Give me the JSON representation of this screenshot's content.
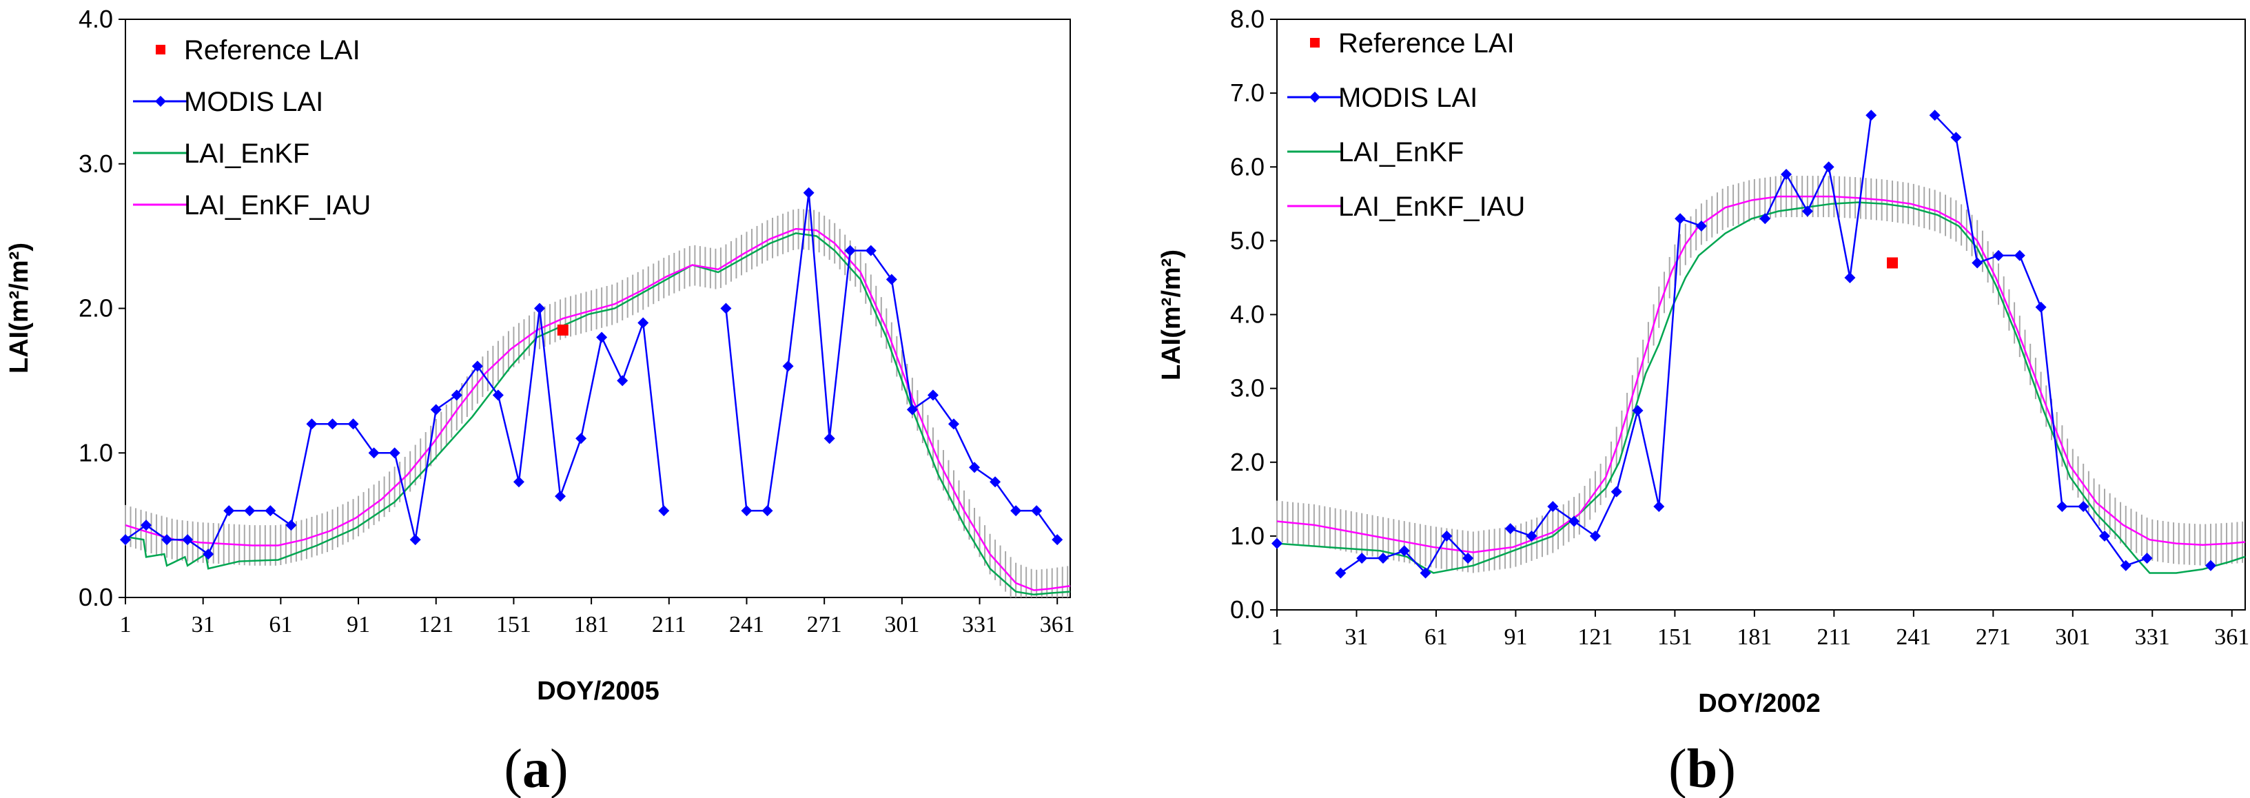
{
  "chart_data": [
    {
      "type": "line",
      "panel_label": {
        "open": "(",
        "letter": "a",
        "close": ")"
      },
      "xlabel": "DOY/2005",
      "ylabel": "LAI(m²/m²)",
      "xlim": [
        1,
        366
      ],
      "ylim": [
        0,
        4
      ],
      "xticks": [
        1,
        31,
        61,
        91,
        121,
        151,
        181,
        211,
        241,
        271,
        301,
        331,
        361
      ],
      "yticks": [
        "0.0",
        "1.0",
        "2.0",
        "3.0",
        "4.0"
      ],
      "legend": [
        "Reference LAI",
        "MODIS LAI",
        "LAI_EnKF",
        "LAI_EnKF_IAU"
      ],
      "series": [
        {
          "name": "Reference LAI",
          "kind": "marker",
          "color": "#ff0000",
          "points": [
            [
              170,
              1.85
            ]
          ]
        },
        {
          "name": "MODIS LAI",
          "kind": "line-marker",
          "color": "#0000ff",
          "segments": [
            [
              [
                1,
                0.4
              ],
              [
                9,
                0.5
              ],
              [
                17,
                0.4
              ],
              [
                25,
                0.4
              ],
              [
                33,
                0.3
              ],
              [
                41,
                0.6
              ],
              [
                49,
                0.6
              ],
              [
                57,
                0.6
              ],
              [
                65,
                0.5
              ],
              [
                73,
                1.2
              ],
              [
                81,
                1.2
              ],
              [
                89,
                1.2
              ],
              [
                97,
                1.0
              ],
              [
                105,
                1.0
              ],
              [
                113,
                0.4
              ],
              [
                121,
                1.3
              ],
              [
                129,
                1.4
              ],
              [
                137,
                1.6
              ],
              [
                145,
                1.4
              ],
              [
                153,
                0.8
              ],
              [
                161,
                2.0
              ],
              [
                169,
                0.7
              ],
              [
                177,
                1.1
              ],
              [
                185,
                1.8
              ],
              [
                193,
                1.5
              ],
              [
                201,
                1.9
              ],
              [
                209,
                0.6
              ]
            ],
            [
              [
                233,
                2.0
              ],
              [
                241,
                0.6
              ],
              [
                249,
                0.6
              ],
              [
                257,
                1.6
              ],
              [
                265,
                2.8
              ],
              [
                273,
                1.1
              ],
              [
                281,
                2.4
              ],
              [
                289,
                2.4
              ],
              [
                297,
                2.2
              ],
              [
                305,
                1.3
              ],
              [
                313,
                1.4
              ],
              [
                321,
                1.2
              ],
              [
                329,
                0.9
              ],
              [
                337,
                0.8
              ],
              [
                345,
                0.6
              ],
              [
                353,
                0.6
              ],
              [
                361,
                0.4
              ]
            ]
          ]
        },
        {
          "name": "LAI_EnKF",
          "kind": "line",
          "color": "#00a651",
          "points": [
            [
              1,
              0.42
            ],
            [
              8,
              0.4
            ],
            [
              9,
              0.28
            ],
            [
              16,
              0.3
            ],
            [
              17,
              0.22
            ],
            [
              24,
              0.28
            ],
            [
              25,
              0.22
            ],
            [
              32,
              0.3
            ],
            [
              33,
              0.2
            ],
            [
              45,
              0.25
            ],
            [
              60,
              0.26
            ],
            [
              75,
              0.36
            ],
            [
              90,
              0.48
            ],
            [
              105,
              0.66
            ],
            [
              120,
              0.95
            ],
            [
              135,
              1.25
            ],
            [
              150,
              1.6
            ],
            [
              160,
              1.8
            ],
            [
              170,
              1.88
            ],
            [
              180,
              1.96
            ],
            [
              190,
              2.0
            ],
            [
              200,
              2.1
            ],
            [
              210,
              2.2
            ],
            [
              220,
              2.3
            ],
            [
              230,
              2.25
            ],
            [
              240,
              2.35
            ],
            [
              250,
              2.45
            ],
            [
              260,
              2.52
            ],
            [
              268,
              2.5
            ],
            [
              275,
              2.4
            ],
            [
              285,
              2.2
            ],
            [
              295,
              1.8
            ],
            [
              305,
              1.3
            ],
            [
              315,
              0.85
            ],
            [
              325,
              0.5
            ],
            [
              335,
              0.2
            ],
            [
              345,
              0.04
            ],
            [
              352,
              0.02
            ],
            [
              358,
              0.03
            ],
            [
              366,
              0.04
            ]
          ]
        },
        {
          "name": "LAI_EnKF_IAU",
          "kind": "line-band",
          "color": "#ff00ff",
          "band": 0.14,
          "points": [
            [
              1,
              0.5
            ],
            [
              10,
              0.45
            ],
            [
              20,
              0.4
            ],
            [
              30,
              0.38
            ],
            [
              40,
              0.37
            ],
            [
              50,
              0.36
            ],
            [
              60,
              0.36
            ],
            [
              70,
              0.4
            ],
            [
              80,
              0.46
            ],
            [
              90,
              0.55
            ],
            [
              100,
              0.68
            ],
            [
              110,
              0.85
            ],
            [
              120,
              1.07
            ],
            [
              130,
              1.32
            ],
            [
              140,
              1.55
            ],
            [
              150,
              1.72
            ],
            [
              160,
              1.85
            ],
            [
              170,
              1.93
            ],
            [
              180,
              1.98
            ],
            [
              190,
              2.03
            ],
            [
              200,
              2.12
            ],
            [
              210,
              2.22
            ],
            [
              220,
              2.3
            ],
            [
              230,
              2.27
            ],
            [
              240,
              2.38
            ],
            [
              250,
              2.48
            ],
            [
              260,
              2.55
            ],
            [
              268,
              2.54
            ],
            [
              275,
              2.45
            ],
            [
              285,
              2.25
            ],
            [
              295,
              1.86
            ],
            [
              305,
              1.38
            ],
            [
              315,
              0.95
            ],
            [
              325,
              0.6
            ],
            [
              335,
              0.3
            ],
            [
              345,
              0.1
            ],
            [
              352,
              0.05
            ],
            [
              358,
              0.06
            ],
            [
              366,
              0.08
            ]
          ]
        }
      ]
    },
    {
      "type": "line",
      "panel_label": {
        "open": "(",
        "letter": "b",
        "close": ")"
      },
      "xlabel": "DOY/2002",
      "ylabel": "LAI(m²/m²)",
      "xlim": [
        1,
        366
      ],
      "ylim": [
        0,
        8
      ],
      "xticks": [
        1,
        31,
        61,
        91,
        121,
        151,
        181,
        211,
        241,
        271,
        301,
        331,
        361
      ],
      "yticks": [
        "0.0",
        "1.0",
        "2.0",
        "3.0",
        "4.0",
        "5.0",
        "6.0",
        "7.0",
        "8.0"
      ],
      "legend": [
        "Reference LAI",
        "MODIS LAI",
        "LAI_EnKF",
        "LAI_EnKF_IAU"
      ],
      "series": [
        {
          "name": "Reference LAI",
          "kind": "marker",
          "color": "#ff0000",
          "points": [
            [
              233,
              4.7
            ]
          ]
        },
        {
          "name": "MODIS LAI",
          "kind": "line-marker",
          "color": "#0000ff",
          "segments": [
            [
              [
                1,
                0.9
              ]
            ],
            [
              [
                25,
                0.5
              ],
              [
                33,
                0.7
              ],
              [
                41,
                0.7
              ],
              [
                49,
                0.8
              ],
              [
                57,
                0.5
              ],
              [
                65,
                1.0
              ],
              [
                73,
                0.7
              ]
            ],
            [
              [
                89,
                1.1
              ],
              [
                97,
                1.0
              ],
              [
                105,
                1.4
              ],
              [
                113,
                1.2
              ],
              [
                121,
                1.0
              ],
              [
                129,
                1.6
              ],
              [
                137,
                2.7
              ],
              [
                145,
                1.4
              ],
              [
                153,
                5.3
              ],
              [
                161,
                5.2
              ]
            ],
            [
              [
                185,
                5.3
              ],
              [
                193,
                5.9
              ],
              [
                201,
                5.4
              ],
              [
                209,
                6.0
              ],
              [
                217,
                4.5
              ],
              [
                225,
                6.7
              ]
            ],
            [
              [
                249,
                6.7
              ],
              [
                257,
                6.4
              ],
              [
                265,
                4.7
              ],
              [
                273,
                4.8
              ],
              [
                281,
                4.8
              ],
              [
                289,
                4.1
              ],
              [
                297,
                1.4
              ],
              [
                305,
                1.4
              ],
              [
                313,
                1.0
              ],
              [
                321,
                0.6
              ],
              [
                329,
                0.7
              ]
            ],
            [
              [
                353,
                0.6
              ]
            ]
          ]
        },
        {
          "name": "LAI_EnKF",
          "kind": "line",
          "color": "#00a651",
          "points": [
            [
              1,
              0.9
            ],
            [
              20,
              0.85
            ],
            [
              40,
              0.8
            ],
            [
              50,
              0.72
            ],
            [
              55,
              0.6
            ],
            [
              60,
              0.5
            ],
            [
              75,
              0.6
            ],
            [
              90,
              0.8
            ],
            [
              105,
              1.0
            ],
            [
              115,
              1.3
            ],
            [
              125,
              1.65
            ],
            [
              130,
              2.0
            ],
            [
              135,
              2.6
            ],
            [
              140,
              3.2
            ],
            [
              145,
              3.6
            ],
            [
              150,
              4.1
            ],
            [
              155,
              4.5
            ],
            [
              160,
              4.8
            ],
            [
              170,
              5.1
            ],
            [
              180,
              5.3
            ],
            [
              190,
              5.4
            ],
            [
              200,
              5.45
            ],
            [
              210,
              5.5
            ],
            [
              220,
              5.52
            ],
            [
              230,
              5.5
            ],
            [
              240,
              5.45
            ],
            [
              250,
              5.35
            ],
            [
              258,
              5.2
            ],
            [
              265,
              4.9
            ],
            [
              272,
              4.4
            ],
            [
              280,
              3.7
            ],
            [
              290,
              2.7
            ],
            [
              300,
              1.8
            ],
            [
              310,
              1.3
            ],
            [
              318,
              1.0
            ],
            [
              325,
              0.7
            ],
            [
              330,
              0.5
            ],
            [
              340,
              0.5
            ],
            [
              350,
              0.55
            ],
            [
              360,
              0.65
            ],
            [
              366,
              0.72
            ]
          ]
        },
        {
          "name": "LAI_EnKF_IAU",
          "kind": "line-band",
          "color": "#ff00ff",
          "band": 0.28,
          "points": [
            [
              1,
              1.2
            ],
            [
              15,
              1.15
            ],
            [
              30,
              1.05
            ],
            [
              45,
              0.95
            ],
            [
              60,
              0.85
            ],
            [
              75,
              0.78
            ],
            [
              90,
              0.85
            ],
            [
              105,
              1.05
            ],
            [
              115,
              1.3
            ],
            [
              125,
              1.8
            ],
            [
              130,
              2.3
            ],
            [
              135,
              2.9
            ],
            [
              140,
              3.5
            ],
            [
              145,
              4.1
            ],
            [
              150,
              4.6
            ],
            [
              155,
              4.95
            ],
            [
              160,
              5.2
            ],
            [
              170,
              5.45
            ],
            [
              180,
              5.55
            ],
            [
              190,
              5.6
            ],
            [
              200,
              5.6
            ],
            [
              210,
              5.6
            ],
            [
              220,
              5.58
            ],
            [
              230,
              5.55
            ],
            [
              240,
              5.5
            ],
            [
              250,
              5.4
            ],
            [
              258,
              5.25
            ],
            [
              265,
              5.0
            ],
            [
              272,
              4.5
            ],
            [
              280,
              3.8
            ],
            [
              290,
              2.85
            ],
            [
              300,
              1.95
            ],
            [
              310,
              1.45
            ],
            [
              320,
              1.15
            ],
            [
              330,
              0.95
            ],
            [
              340,
              0.9
            ],
            [
              350,
              0.88
            ],
            [
              360,
              0.9
            ],
            [
              366,
              0.92
            ]
          ]
        }
      ]
    }
  ]
}
